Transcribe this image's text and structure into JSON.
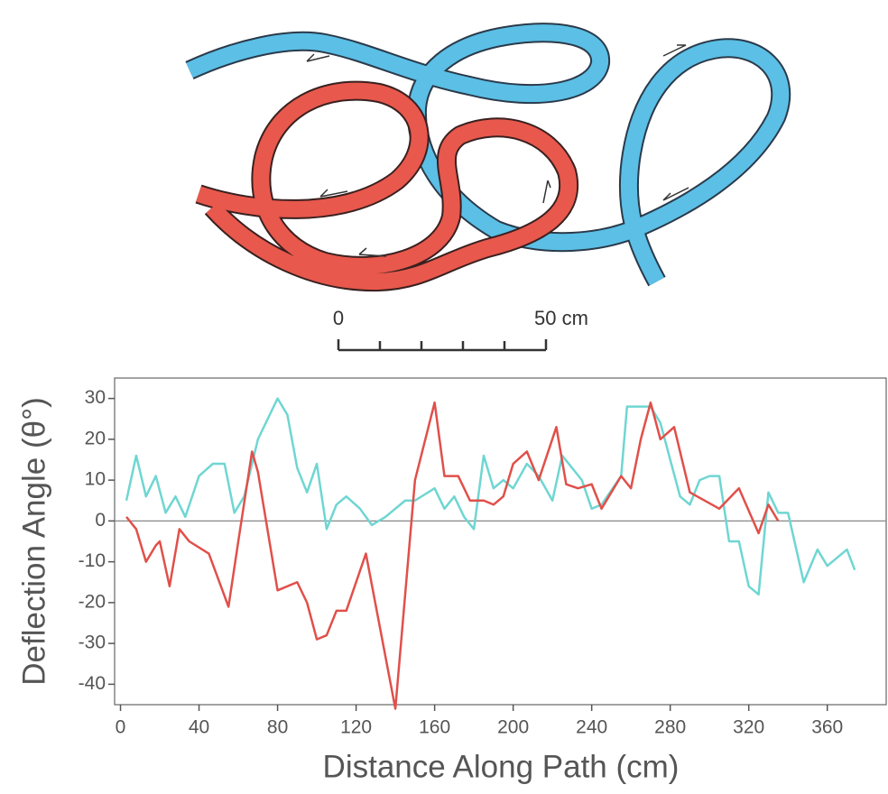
{
  "scale_bar": {
    "labels": [
      "0",
      "50 cm"
    ]
  },
  "chart_data": {
    "type": "line",
    "xlabel": "Distance Along Path (cm)",
    "ylabel": "Deflection Angle (θ°)",
    "xlim": [
      -3,
      390
    ],
    "ylim": [
      -45,
      35
    ],
    "xticks": [
      0,
      40,
      80,
      120,
      160,
      200,
      240,
      280,
      320,
      360
    ],
    "yticks": [
      30,
      20,
      10,
      0,
      -10,
      -20,
      -30,
      -40
    ],
    "series": [
      {
        "color": "#e0504a",
        "x": [
          3,
          8,
          13,
          18,
          20,
          25,
          30,
          35,
          45,
          55,
          60,
          67,
          70,
          80,
          90,
          95,
          100,
          105,
          110,
          115,
          125,
          140,
          150,
          160,
          165,
          172,
          178,
          185,
          190,
          195,
          200,
          207,
          213,
          222,
          227,
          233,
          240,
          245,
          250,
          255,
          260,
          265,
          270,
          275,
          282,
          290,
          305,
          315,
          325,
          330,
          335
        ],
        "values": [
          1,
          -2,
          -10,
          -6,
          -5,
          -16,
          -2,
          -5,
          -8,
          -21,
          -5,
          17,
          12,
          -17,
          -15,
          -20,
          -29,
          -28,
          -22,
          -22,
          -8,
          -46,
          10,
          29,
          11,
          11,
          5,
          5,
          4,
          6,
          14,
          17,
          10,
          23,
          9,
          8,
          9,
          3,
          7,
          11,
          8,
          20,
          29,
          20,
          23,
          7,
          3,
          8,
          -3,
          4,
          0
        ]
      },
      {
        "color": "#6fd6d2",
        "x": [
          3,
          8,
          13,
          18,
          23,
          28,
          33,
          40,
          47,
          53,
          58,
          63,
          70,
          80,
          85,
          90,
          95,
          100,
          105,
          110,
          115,
          122,
          128,
          135,
          145,
          150,
          160,
          165,
          170,
          175,
          180,
          185,
          190,
          195,
          200,
          207,
          213,
          220,
          225,
          230,
          235,
          240,
          245,
          255,
          258,
          265,
          270,
          275,
          280,
          285,
          290,
          295,
          300,
          305,
          310,
          315,
          320,
          325,
          330,
          335,
          340,
          348,
          355,
          360,
          370,
          374
        ],
        "values": [
          5,
          16,
          6,
          11,
          2,
          6,
          1,
          11,
          14,
          14,
          2,
          6,
          20,
          30,
          26,
          13,
          7,
          14,
          -2,
          4,
          6,
          3,
          -1,
          1,
          5,
          5,
          8,
          3,
          6,
          1,
          -2,
          16,
          8,
          10,
          8,
          14,
          11,
          5,
          16,
          13,
          10,
          3,
          4,
          11,
          28,
          28,
          28,
          24,
          15,
          6,
          4,
          10,
          11,
          11,
          -5,
          -5,
          -16,
          -18,
          7,
          2,
          2,
          -15,
          -7,
          -11,
          -7,
          -12
        ]
      }
    ]
  }
}
